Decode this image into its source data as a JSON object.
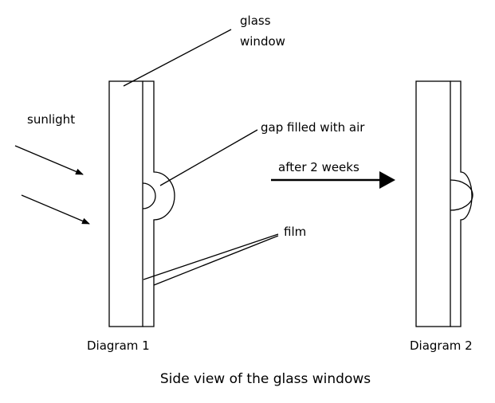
{
  "labels": {
    "glass_line1": "glass",
    "glass_line2": "window",
    "sunlight": "sunlight",
    "gap": "gap filled with air",
    "after": "after 2 weeks",
    "film": "film",
    "diagram1": "Diagram 1",
    "diagram2": "Diagram 2",
    "caption": "Side view of the glass windows"
  }
}
